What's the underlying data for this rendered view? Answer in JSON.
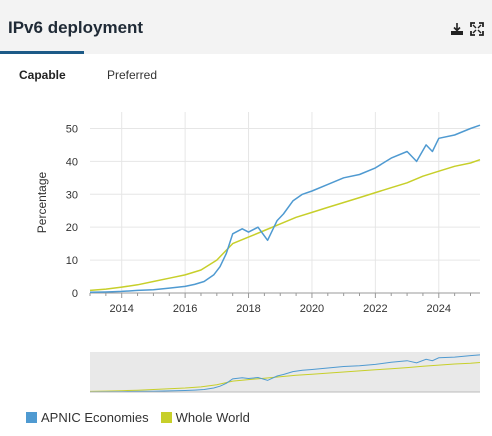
{
  "header": {
    "title": "IPv6 deployment",
    "download_icon": "download-icon",
    "fullscreen_icon": "fullscreen-icon"
  },
  "tabs": [
    {
      "label": "Capable",
      "active": true
    },
    {
      "label": "Preferred",
      "active": false
    }
  ],
  "colors": {
    "apnic": "#4f9ad1",
    "world": "#c7cf2a",
    "grid": "#e6e6e6",
    "axis_text": "#333333"
  },
  "chart_data": {
    "type": "line",
    "xlabel": "",
    "ylabel": "Percentage",
    "xlim": [
      2013.0,
      2025.3
    ],
    "ylim": [
      0,
      55
    ],
    "x_ticks": [
      2014,
      2016,
      2018,
      2020,
      2022,
      2024
    ],
    "y_ticks": [
      0,
      10,
      20,
      30,
      40,
      50
    ],
    "grid": true,
    "legend": "bottom-left",
    "series": [
      {
        "name": "APNIC Economies",
        "color": "#4f9ad1",
        "x": [
          2013.0,
          2013.5,
          2014.0,
          2014.5,
          2015.0,
          2015.5,
          2016.0,
          2016.3,
          2016.6,
          2016.9,
          2017.1,
          2017.3,
          2017.5,
          2017.8,
          2018.0,
          2018.3,
          2018.6,
          2018.9,
          2019.1,
          2019.4,
          2019.7,
          2020.0,
          2020.5,
          2021.0,
          2021.5,
          2022.0,
          2022.5,
          2023.0,
          2023.3,
          2023.6,
          2023.8,
          2024.0,
          2024.5,
          2025.0,
          2025.3
        ],
        "y": [
          0.2,
          0.3,
          0.5,
          0.8,
          1.0,
          1.5,
          2.0,
          2.6,
          3.5,
          5.5,
          8.0,
          12.0,
          18.0,
          19.5,
          18.5,
          20.0,
          16.0,
          22.0,
          24.0,
          28.0,
          30.0,
          31.0,
          33.0,
          35.0,
          36.0,
          38.0,
          41.0,
          43.0,
          40.0,
          45.0,
          43.0,
          47.0,
          48.0,
          50.0,
          51.0
        ]
      },
      {
        "name": "Whole World",
        "color": "#c7cf2a",
        "x": [
          2013.0,
          2013.5,
          2014.0,
          2014.5,
          2015.0,
          2015.5,
          2016.0,
          2016.5,
          2017.0,
          2017.5,
          2018.0,
          2018.5,
          2019.0,
          2019.5,
          2020.0,
          2020.5,
          2021.0,
          2021.5,
          2022.0,
          2022.5,
          2023.0,
          2023.5,
          2024.0,
          2024.5,
          2025.0,
          2025.3
        ],
        "y": [
          0.8,
          1.2,
          1.8,
          2.5,
          3.5,
          4.5,
          5.5,
          7.0,
          10.0,
          15.0,
          17.0,
          19.0,
          21.0,
          23.0,
          24.5,
          26.0,
          27.5,
          29.0,
          30.5,
          32.0,
          33.5,
          35.5,
          37.0,
          38.5,
          39.5,
          40.5
        ]
      }
    ]
  },
  "legend": [
    {
      "label": "APNIC Economies",
      "color": "#4f9ad1"
    },
    {
      "label": "Whole World",
      "color": "#c7cf2a"
    }
  ]
}
